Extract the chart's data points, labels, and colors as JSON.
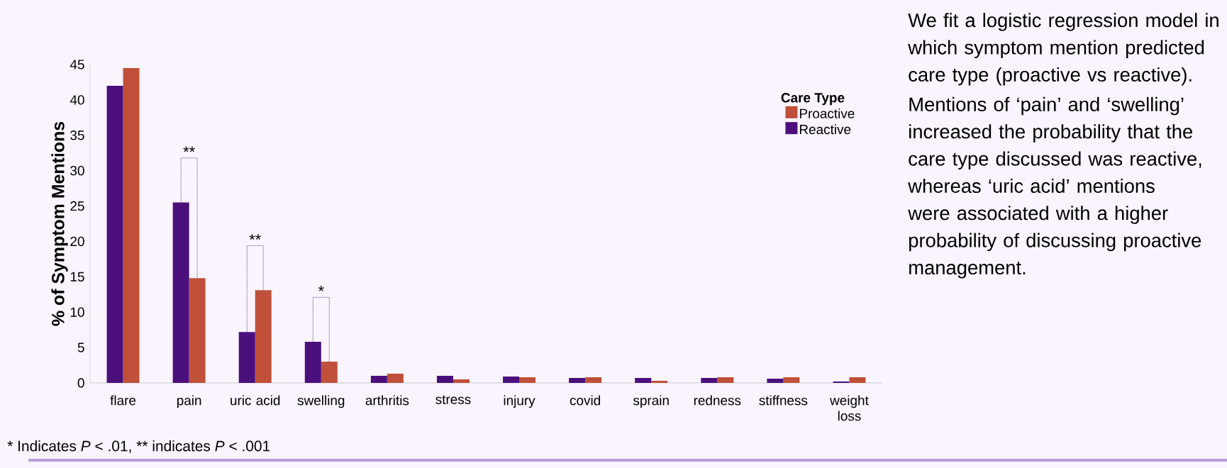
{
  "chart_data": {
    "type": "bar",
    "ylabel": "% of Symptom Mentions",
    "legend_title": "Care Type",
    "legend": "top right",
    "categories": [
      "flare",
      "pain",
      "uric acid",
      "swelling",
      "arthritis",
      "stress",
      "injury",
      "covid",
      "sprain",
      "redness",
      "stiffness",
      "weight loss"
    ],
    "series": [
      {
        "name": "Reactive",
        "color": "#4b0f7c",
        "values": [
          42.0,
          25.5,
          7.2,
          5.8,
          1.0,
          1.0,
          0.9,
          0.7,
          0.7,
          0.7,
          0.6,
          0.2
        ]
      },
      {
        "name": "Proactive",
        "color": "#c0503a",
        "values": [
          44.5,
          14.8,
          13.1,
          3.0,
          1.3,
          0.5,
          0.8,
          0.8,
          0.3,
          0.8,
          0.8,
          0.8
        ]
      }
    ],
    "ylim": [
      0,
      45
    ],
    "yticks": [
      0,
      5,
      10,
      15,
      20,
      25,
      30,
      35,
      40,
      45
    ],
    "grid": false,
    "annotations": [
      "**",
      "**",
      "*",
      "We fit a logistic regression model in which symptom mention predicted care type (proactive vs reactive).",
      "Mentions of ‘pain’ and ‘swelling’ increased the probability that the care type discussed was reactive, whereas ‘uric acid’ mentions were associated with a higher probability of discussing proactive management.",
      "* Indicates *P* < .01, ** indicates *P* < .001"
    ]
  }
}
